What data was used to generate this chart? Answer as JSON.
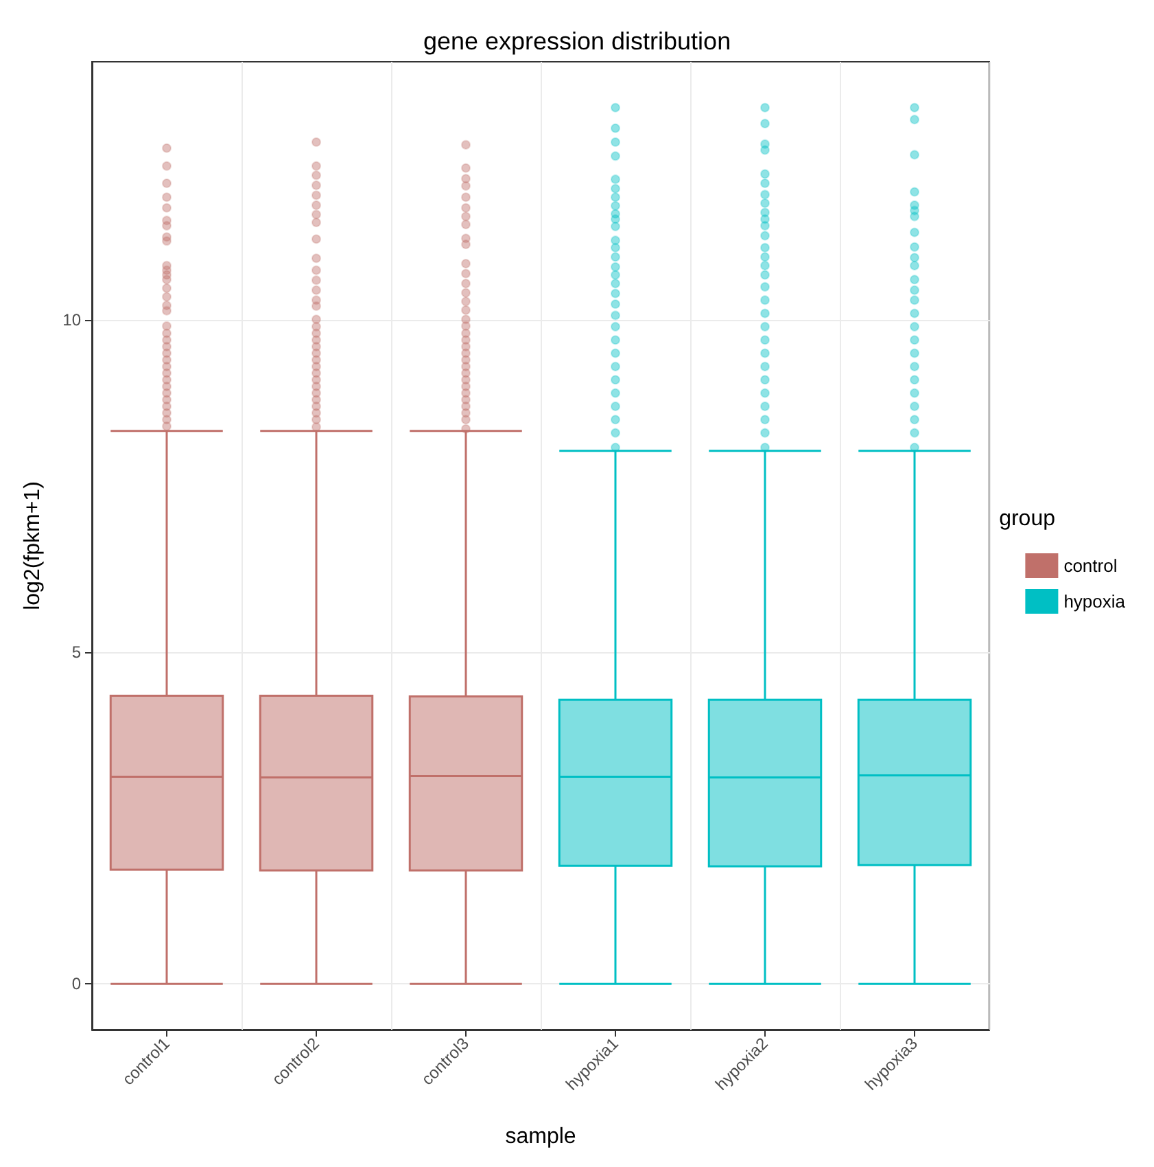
{
  "chart_data": {
    "type": "box",
    "title": "gene expression distribution",
    "xlabel": "sample",
    "ylabel": "log2(fpkm+1)",
    "legend_title": "group",
    "legend": "right",
    "grid": true,
    "categories": [
      "control1",
      "control2",
      "control3",
      "hypoxia1",
      "hypoxia2",
      "hypoxia3"
    ],
    "ylim": [
      -0.69,
      13.89
    ],
    "yticks": [
      0,
      5,
      10
    ],
    "series": [
      {
        "name": "control",
        "color": "#c0706a",
        "boxes": [
          {
            "low": 0,
            "q1": 1.72,
            "median": 3.12,
            "q3": 4.34,
            "high": 8.33,
            "outliers": [
              12.59,
              12.32,
              12.06,
              11.85,
              11.69,
              11.5,
              11.42,
              11.25,
              11.19,
              10.82,
              10.75,
              10.68,
              10.61,
              10.48,
              10.35,
              10.22,
              10.14,
              9.91,
              9.8,
              9.7,
              9.6,
              9.5,
              9.4,
              9.3,
              9.2,
              9.1,
              9.0,
              8.9,
              8.8,
              8.7,
              8.6,
              8.5,
              8.4
            ]
          },
          {
            "low": 0,
            "q1": 1.71,
            "median": 3.11,
            "q3": 4.34,
            "high": 8.33,
            "outliers": [
              12.68,
              12.32,
              12.18,
              12.03,
              11.88,
              11.73,
              11.59,
              11.47,
              11.22,
              10.93,
              10.75,
              10.6,
              10.45,
              10.3,
              10.21,
              10.01,
              9.9,
              9.8,
              9.7,
              9.6,
              9.5,
              9.4,
              9.3,
              9.2,
              9.1,
              9.0,
              8.9,
              8.8,
              8.7,
              8.6,
              8.5,
              8.39
            ]
          },
          {
            "low": 0,
            "q1": 1.71,
            "median": 3.13,
            "q3": 4.33,
            "high": 8.33,
            "outliers": [
              12.64,
              12.29,
              12.13,
              12.02,
              11.85,
              11.69,
              11.56,
              11.44,
              11.23,
              11.14,
              10.85,
              10.7,
              10.55,
              10.41,
              10.28,
              10.15,
              10.01,
              9.91,
              9.8,
              9.7,
              9.6,
              9.5,
              9.4,
              9.3,
              9.2,
              9.1,
              9.0,
              8.9,
              8.8,
              8.7,
              8.6,
              8.5,
              8.36
            ]
          },
          null,
          null,
          null
        ]
      },
      {
        "name": "hypoxia",
        "color": "#00bfc4",
        "boxes": [
          null,
          null,
          null,
          {
            "low": 0,
            "q1": 1.78,
            "median": 3.12,
            "q3": 4.28,
            "high": 8.03,
            "outliers": [
              13.2,
              12.89,
              12.68,
              12.47,
              12.12,
              11.98,
              11.85,
              11.72,
              11.6,
              11.52,
              11.41,
              11.2,
              11.09,
              10.95,
              10.8,
              10.68,
              10.55,
              10.4,
              10.24,
              10.07,
              9.9,
              9.7,
              9.5,
              9.3,
              9.1,
              8.9,
              8.7,
              8.5,
              8.3,
              8.08
            ]
          },
          {
            "low": 0,
            "q1": 1.77,
            "median": 3.11,
            "q3": 4.28,
            "high": 8.03,
            "outliers": [
              13.2,
              12.96,
              12.65,
              12.56,
              12.2,
              12.06,
              11.89,
              11.76,
              11.62,
              11.52,
              11.42,
              11.27,
              11.09,
              10.95,
              10.82,
              10.68,
              10.5,
              10.3,
              10.1,
              9.9,
              9.7,
              9.5,
              9.3,
              9.1,
              8.9,
              8.7,
              8.5,
              8.3,
              8.08
            ]
          },
          {
            "low": 0,
            "q1": 1.79,
            "median": 3.14,
            "q3": 4.28,
            "high": 8.03,
            "outliers": [
              13.2,
              13.02,
              12.49,
              11.93,
              11.73,
              11.65,
              11.56,
              11.32,
              11.1,
              10.94,
              10.82,
              10.61,
              10.45,
              10.3,
              10.1,
              9.9,
              9.7,
              9.5,
              9.3,
              9.1,
              8.9,
              8.7,
              8.5,
              8.3,
              8.08
            ]
          }
        ]
      }
    ]
  }
}
